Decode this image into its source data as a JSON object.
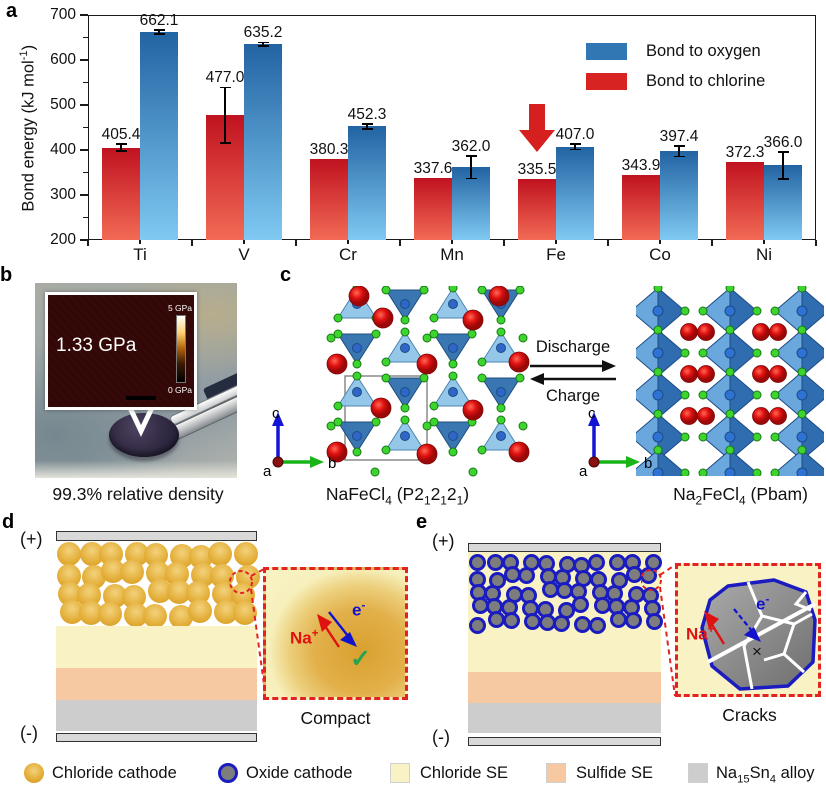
{
  "chart_data": {
    "type": "bar",
    "categories": [
      "Ti",
      "V",
      "Cr",
      "Mn",
      "Fe",
      "Co",
      "Ni"
    ],
    "series": [
      {
        "name": "Bond to chlorine",
        "values": [
          405.4,
          477.0,
          380.3,
          337.6,
          335.5,
          343.9,
          372.3
        ],
        "errors": [
          8,
          62,
          0,
          0,
          0,
          0,
          0
        ],
        "color_top": "#c01220",
        "color_bottom": "#f26a55"
      },
      {
        "name": "Bond to oxygen",
        "values": [
          662.1,
          635.2,
          452.3,
          362.0,
          407.0,
          397.4,
          366.0
        ],
        "errors": [
          4,
          4,
          6,
          25,
          6,
          12,
          30
        ],
        "color_top": "#2263a2",
        "color_bottom": "#7fc9f2"
      }
    ],
    "ylabel": "Bond energy (kJ mol⁻¹)",
    "ylim": [
      200,
      700
    ],
    "yticks": [
      200,
      300,
      400,
      500,
      600,
      700
    ],
    "grid": false,
    "legend_position": "top-right",
    "annotation": {
      "type": "arrow-down",
      "category": "Fe",
      "series": "Bond to chlorine",
      "color": "#d6201f"
    }
  },
  "panel_a": {
    "label": "a",
    "ylabel_rich": "Bond energy (kJ mol^-1^)",
    "legend": [
      {
        "label": "Bond to oxygen",
        "color": "#3077b4"
      },
      {
        "label": "Bond to chlorine",
        "color": "#d72422"
      }
    ]
  },
  "panel_b": {
    "label": "b",
    "inset_value": "1.33 GPa",
    "scale_max": "5 GPa",
    "scale_min": "0 GPa",
    "caption": "99.3% relative density"
  },
  "panel_c": {
    "label": "c",
    "discharge": "Discharge",
    "charge": "Charge",
    "left_formula": "NaFeCl_4_ (P2_1_2_1_2_1_)",
    "right_formula": "Na_2_FeCl_4_ (Pbam)",
    "axis": {
      "a": "a",
      "b": "b",
      "c": "c"
    }
  },
  "panel_d": {
    "label": "d",
    "positive": "(+)",
    "negative": "(-)",
    "na_ion": "Na^+^",
    "electron": "e^-^",
    "check": "✓",
    "caption": "Compact"
  },
  "panel_e": {
    "label": "e",
    "positive": "(+)",
    "negative": "(-)",
    "na_ion": "Na^+^",
    "electron": "e^-^",
    "cross": "×",
    "caption": "Cracks"
  },
  "bottom_legend": {
    "items": [
      {
        "label": "Chloride cathode",
        "color": "#e2ab33",
        "shape": "circle"
      },
      {
        "label": "Oxide cathode",
        "color": "#7d7d7d",
        "border": "#1a1cc0",
        "shape": "circle"
      },
      {
        "label": "Chloride SE",
        "color": "#f9f2c4",
        "shape": "square"
      },
      {
        "label": "Sulfide SE",
        "color": "#f6c9a2",
        "shape": "square"
      },
      {
        "label": "Na_15_Sn_4_ alloy",
        "color": "#cdcdcd",
        "shape": "square"
      }
    ]
  },
  "colors": {
    "chloride_se": "#f9f2c4",
    "sulfide_se": "#f6c9a2",
    "alloy": "#cdcdcd",
    "electrode": "#d9d9d9",
    "accent_red": "#e32222"
  }
}
